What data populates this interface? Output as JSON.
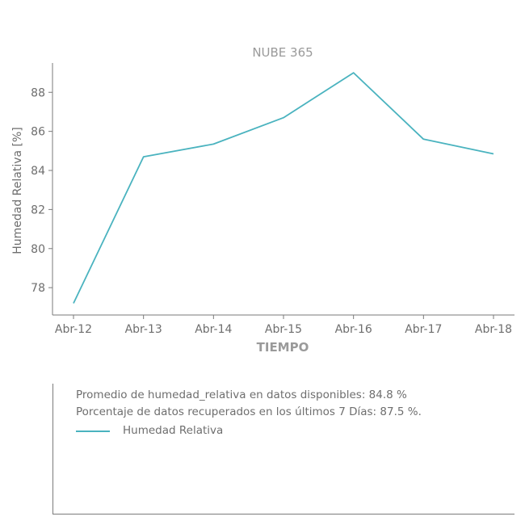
{
  "chart_data": {
    "type": "line",
    "title": "NUBE 365",
    "xlabel": "TIEMPO",
    "ylabel": "Humedad Relativa [%]",
    "categories": [
      "Abr-12",
      "Abr-13",
      "Abr-14",
      "Abr-15",
      "Abr-16",
      "Abr-17",
      "Abr-18"
    ],
    "series": [
      {
        "name": "Humedad Relativa",
        "values": [
          77.2,
          84.7,
          85.35,
          86.7,
          89.0,
          85.6,
          84.85
        ]
      }
    ],
    "yticks": [
      78,
      80,
      82,
      84,
      86,
      88
    ],
    "ylim": [
      76.6,
      89.5
    ],
    "grid": false,
    "legend": "bottom-panel",
    "colors": {
      "line": "#4ab3bf",
      "axis": "#7a7a7a",
      "text": "#6e6e6e",
      "title": "#9a9a9a"
    }
  },
  "info": {
    "line1": "Promedio de humedad_relativa en datos disponibles: 84.8 %",
    "line2": "Porcentaje de datos recuperados en los últimos 7 Días: 87.5 %."
  },
  "legend": {
    "label": "Humedad Relativa"
  }
}
